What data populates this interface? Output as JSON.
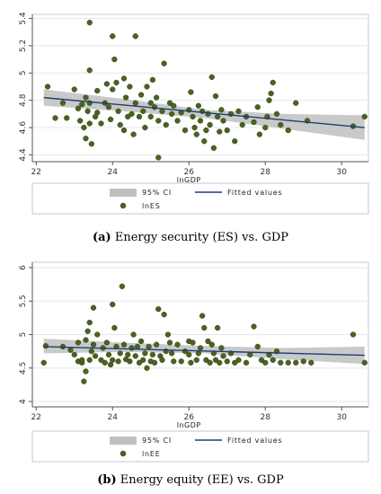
{
  "chart_data": [
    {
      "type": "scatter",
      "xlabel": "lnGDP",
      "ylabel": "",
      "xlim": [
        21.9,
        30.7
      ],
      "ylim": [
        4.35,
        5.43
      ],
      "xticks": [
        22,
        24,
        26,
        28,
        30
      ],
      "yticks": [
        4.4,
        4.6,
        4.8,
        5.0,
        5.2,
        5.4
      ],
      "ytick_labels": [
        "4.4",
        "4.6",
        "4.8",
        "5",
        "5.2",
        "5.4"
      ],
      "grid": true,
      "legend_position": "bottom",
      "legend": {
        "ci": "95% CI",
        "fit": "Fitted values",
        "points": "lnES"
      },
      "fit": {
        "x0": 22.2,
        "y0": 4.82,
        "x1": 30.6,
        "y1": 4.6
      },
      "ci": {
        "x": [
          22.2,
          24.3,
          26.4,
          28.5,
          30.6
        ],
        "lower": [
          4.76,
          4.72,
          4.67,
          4.59,
          4.51
        ],
        "upper": [
          4.88,
          4.81,
          4.73,
          4.7,
          4.69
        ]
      },
      "points": [
        [
          22.3,
          4.9
        ],
        [
          22.5,
          4.67
        ],
        [
          22.7,
          4.78
        ],
        [
          22.8,
          4.67
        ],
        [
          23.0,
          4.88
        ],
        [
          23.1,
          4.74
        ],
        [
          23.15,
          4.65
        ],
        [
          23.2,
          4.77
        ],
        [
          23.25,
          4.6
        ],
        [
          23.3,
          4.52
        ],
        [
          23.3,
          4.82
        ],
        [
          23.35,
          4.72
        ],
        [
          23.4,
          4.78
        ],
        [
          23.4,
          4.63
        ],
        [
          23.45,
          4.48
        ],
        [
          23.4,
          5.02
        ],
        [
          23.4,
          5.37
        ],
        [
          23.55,
          4.68
        ],
        [
          23.6,
          4.71
        ],
        [
          23.6,
          4.87
        ],
        [
          23.7,
          4.63
        ],
        [
          23.8,
          4.78
        ],
        [
          23.85,
          4.92
        ],
        [
          23.9,
          4.75
        ],
        [
          23.95,
          4.66
        ],
        [
          24.0,
          5.27
        ],
        [
          24.0,
          4.88
        ],
        [
          24.05,
          5.1
        ],
        [
          24.1,
          4.93
        ],
        [
          24.15,
          4.72
        ],
        [
          24.2,
          4.62
        ],
        [
          24.3,
          4.96
        ],
        [
          24.3,
          4.58
        ],
        [
          24.35,
          4.82
        ],
        [
          24.4,
          4.68
        ],
        [
          24.45,
          4.9
        ],
        [
          24.5,
          4.7
        ],
        [
          24.55,
          4.55
        ],
        [
          24.6,
          4.78
        ],
        [
          24.6,
          5.27
        ],
        [
          24.7,
          4.68
        ],
        [
          24.75,
          4.84
        ],
        [
          24.8,
          4.72
        ],
        [
          24.85,
          4.6
        ],
        [
          24.9,
          4.9
        ],
        [
          25.0,
          4.78
        ],
        [
          25.0,
          4.68
        ],
        [
          25.05,
          4.95
        ],
        [
          25.1,
          4.75
        ],
        [
          25.15,
          4.82
        ],
        [
          25.2,
          4.65
        ],
        [
          25.2,
          4.38
        ],
        [
          25.3,
          4.72
        ],
        [
          25.35,
          5.07
        ],
        [
          25.4,
          4.62
        ],
        [
          25.5,
          4.78
        ],
        [
          25.55,
          4.7
        ],
        [
          25.6,
          4.76
        ],
        [
          25.7,
          4.65
        ],
        [
          25.8,
          4.71
        ],
        [
          25.9,
          4.58
        ],
        [
          26.0,
          4.73
        ],
        [
          26.05,
          4.86
        ],
        [
          26.1,
          4.68
        ],
        [
          26.15,
          4.6
        ],
        [
          26.2,
          4.55
        ],
        [
          26.25,
          4.76
        ],
        [
          26.3,
          4.65
        ],
        [
          26.35,
          4.72
        ],
        [
          26.4,
          4.5
        ],
        [
          26.45,
          4.58
        ],
        [
          26.5,
          4.7
        ],
        [
          26.55,
          4.62
        ],
        [
          26.6,
          4.97
        ],
        [
          26.65,
          4.45
        ],
        [
          26.7,
          4.83
        ],
        [
          26.75,
          4.68
        ],
        [
          26.8,
          4.57
        ],
        [
          26.85,
          4.73
        ],
        [
          26.9,
          4.65
        ],
        [
          27.0,
          4.58
        ],
        [
          27.1,
          4.7
        ],
        [
          27.2,
          4.5
        ],
        [
          27.3,
          4.72
        ],
        [
          27.4,
          4.62
        ],
        [
          27.5,
          4.68
        ],
        [
          27.7,
          4.64
        ],
        [
          27.8,
          4.75
        ],
        [
          27.85,
          4.55
        ],
        [
          28.0,
          4.6
        ],
        [
          28.05,
          4.68
        ],
        [
          28.1,
          4.8
        ],
        [
          28.15,
          4.85
        ],
        [
          28.2,
          4.93
        ],
        [
          28.3,
          4.7
        ],
        [
          28.4,
          4.62
        ],
        [
          28.6,
          4.58
        ],
        [
          28.8,
          4.78
        ],
        [
          29.1,
          4.65
        ],
        [
          30.3,
          4.61
        ],
        [
          30.6,
          4.68
        ]
      ]
    },
    {
      "type": "scatter",
      "xlabel": "lnGDP",
      "ylabel": "",
      "xlim": [
        21.9,
        30.7
      ],
      "ylim": [
        3.92,
        6.08
      ],
      "xticks": [
        22,
        24,
        26,
        28,
        30
      ],
      "yticks": [
        4.0,
        4.5,
        5.0,
        5.5,
        6.0
      ],
      "ytick_labels": [
        "4",
        "4.5",
        "5",
        "5.5",
        "6"
      ],
      "grid": true,
      "legend_position": "bottom",
      "legend": {
        "ci": "95% CI",
        "fit": "Fitted values",
        "points": "lnEE"
      },
      "fit": {
        "x0": 22.2,
        "y0": 4.82,
        "x1": 30.6,
        "y1": 4.69
      },
      "ci": {
        "x": [
          22.2,
          24.3,
          26.4,
          28.5,
          30.6
        ],
        "lower": [
          4.72,
          4.74,
          4.72,
          4.63,
          4.56
        ],
        "upper": [
          4.94,
          4.88,
          4.83,
          4.8,
          4.82
        ]
      },
      "points": [
        [
          22.2,
          4.58
        ],
        [
          22.25,
          4.83
        ],
        [
          22.7,
          4.82
        ],
        [
          22.9,
          4.77
        ],
        [
          23.0,
          4.7
        ],
        [
          23.1,
          4.88
        ],
        [
          23.1,
          4.6
        ],
        [
          23.2,
          4.58
        ],
        [
          23.2,
          4.62
        ],
        [
          23.25,
          4.3
        ],
        [
          23.3,
          4.45
        ],
        [
          23.3,
          4.92
        ],
        [
          23.35,
          5.05
        ],
        [
          23.4,
          5.18
        ],
        [
          23.4,
          4.62
        ],
        [
          23.45,
          4.75
        ],
        [
          23.5,
          5.4
        ],
        [
          23.5,
          4.85
        ],
        [
          23.55,
          4.68
        ],
        [
          23.6,
          5.0
        ],
        [
          23.7,
          4.62
        ],
        [
          23.75,
          4.8
        ],
        [
          23.8,
          4.58
        ],
        [
          23.85,
          4.88
        ],
        [
          23.9,
          4.7
        ],
        [
          23.95,
          4.55
        ],
        [
          24.0,
          4.62
        ],
        [
          24.0,
          5.45
        ],
        [
          24.05,
          5.1
        ],
        [
          24.1,
          4.82
        ],
        [
          24.15,
          4.6
        ],
        [
          24.2,
          4.72
        ],
        [
          24.25,
          5.72
        ],
        [
          24.3,
          4.85
        ],
        [
          24.35,
          4.63
        ],
        [
          24.4,
          4.7
        ],
        [
          24.45,
          4.6
        ],
        [
          24.5,
          4.8
        ],
        [
          24.55,
          5.0
        ],
        [
          24.6,
          4.68
        ],
        [
          24.65,
          4.82
        ],
        [
          24.7,
          4.58
        ],
        [
          24.75,
          4.9
        ],
        [
          24.8,
          4.62
        ],
        [
          24.85,
          4.72
        ],
        [
          24.9,
          4.5
        ],
        [
          24.95,
          4.82
        ],
        [
          25.0,
          4.6
        ],
        [
          25.05,
          4.7
        ],
        [
          25.1,
          4.58
        ],
        [
          25.15,
          4.85
        ],
        [
          25.2,
          5.38
        ],
        [
          25.25,
          4.68
        ],
        [
          25.3,
          4.62
        ],
        [
          25.35,
          5.3
        ],
        [
          25.4,
          4.75
        ],
        [
          25.45,
          5.0
        ],
        [
          25.5,
          4.88
        ],
        [
          25.55,
          4.72
        ],
        [
          25.6,
          4.6
        ],
        [
          25.7,
          4.85
        ],
        [
          25.8,
          4.6
        ],
        [
          25.9,
          4.75
        ],
        [
          26.0,
          4.9
        ],
        [
          26.0,
          4.7
        ],
        [
          26.05,
          4.58
        ],
        [
          26.1,
          4.88
        ],
        [
          26.2,
          4.62
        ],
        [
          26.25,
          4.72
        ],
        [
          26.3,
          4.8
        ],
        [
          26.35,
          5.28
        ],
        [
          26.4,
          5.1
        ],
        [
          26.45,
          4.62
        ],
        [
          26.5,
          4.9
        ],
        [
          26.55,
          4.58
        ],
        [
          26.6,
          4.85
        ],
        [
          26.65,
          4.72
        ],
        [
          26.7,
          4.62
        ],
        [
          26.75,
          5.1
        ],
        [
          26.8,
          4.58
        ],
        [
          26.85,
          4.8
        ],
        [
          26.9,
          4.68
        ],
        [
          27.0,
          4.6
        ],
        [
          27.1,
          4.72
        ],
        [
          27.2,
          4.58
        ],
        [
          27.3,
          4.62
        ],
        [
          27.5,
          4.58
        ],
        [
          27.6,
          4.7
        ],
        [
          27.7,
          5.12
        ],
        [
          27.8,
          4.82
        ],
        [
          27.9,
          4.62
        ],
        [
          28.0,
          4.58
        ],
        [
          28.1,
          4.7
        ],
        [
          28.2,
          4.62
        ],
        [
          28.3,
          4.75
        ],
        [
          28.4,
          4.58
        ],
        [
          28.6,
          4.58
        ],
        [
          28.8,
          4.58
        ],
        [
          29.0,
          4.6
        ],
        [
          29.2,
          4.58
        ],
        [
          30.3,
          5.0
        ],
        [
          30.6,
          4.58
        ]
      ]
    }
  ],
  "colors": {
    "point_fill": "#4a6320",
    "point_edge": "#2f4312",
    "fit_line": "#1b3f73",
    "ci_band": "#c0c0c0",
    "grid": "#e2e8ec",
    "frame": "#bfc8d0"
  },
  "captions": [
    {
      "label": "(a)",
      "text": " Energy security (ES) vs. GDP"
    },
    {
      "label": "(b)",
      "text": " Energy equity (EE) vs. GDP"
    }
  ]
}
